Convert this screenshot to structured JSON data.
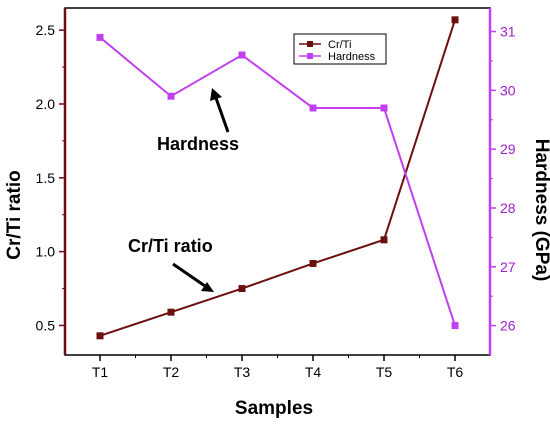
{
  "chart_data": {
    "type": "line",
    "categories": [
      "T1",
      "T2",
      "T3",
      "T4",
      "T5",
      "T6"
    ],
    "xlabel": "Samples",
    "ylabel": "Cr/Ti ratio",
    "y2label": "Hardness (GPa)",
    "ylim": [
      0.3,
      2.65
    ],
    "y2lim": [
      25.5,
      31.4
    ],
    "yticks": [
      "0.5",
      "1.0",
      "1.5",
      "2.0",
      "2.5"
    ],
    "y2ticks": [
      "26",
      "27",
      "28",
      "29",
      "30",
      "31"
    ],
    "series": [
      {
        "name": "Cr/Ti",
        "axis": "left",
        "color": "#6b0f0f",
        "values": [
          0.43,
          0.59,
          0.75,
          0.92,
          1.08,
          2.57
        ]
      },
      {
        "name": "Hardness",
        "axis": "right",
        "color": "#c040f0",
        "values": [
          30.9,
          29.9,
          30.6,
          29.7,
          29.7,
          26.0
        ]
      }
    ],
    "legend": "top-right",
    "annotations": [
      {
        "text": "Hardness",
        "target": "Hardness"
      },
      {
        "text": "Cr/Ti ratio",
        "target": "Cr/Ti"
      }
    ],
    "left_axis_color": "#6b0f0f",
    "right_axis_color": "#c040f0"
  }
}
